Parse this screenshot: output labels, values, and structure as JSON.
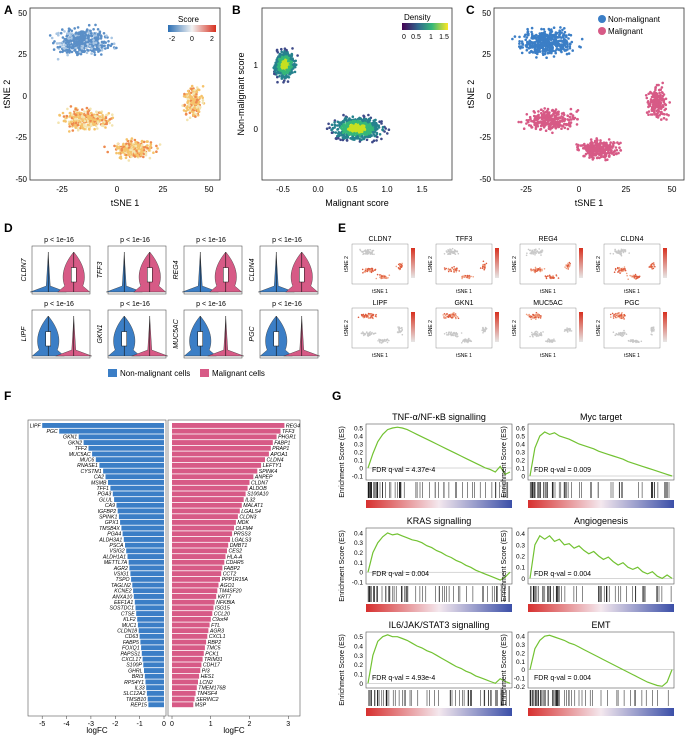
{
  "panels": {
    "A": {
      "label": "A",
      "xlabel": "tSNE 1",
      "ylabel": "tSNE 2",
      "xticks": [
        "-25",
        "0",
        "25",
        "50"
      ],
      "yticks": [
        "50",
        "25",
        "0",
        "-25",
        "-50"
      ],
      "legend_title": "Score",
      "legend_ticks": [
        "-2",
        "0",
        "2"
      ]
    },
    "B": {
      "label": "B",
      "xlabel": "Malignant score",
      "ylabel": "Non-malignant score",
      "xticks": [
        "-0.5",
        "0.0",
        "0.5",
        "1.0",
        "1.5"
      ],
      "yticks": [
        "1",
        "0"
      ],
      "legend_title": "Density",
      "legend_ticks": [
        "0",
        "0.5",
        "1",
        "1.5"
      ]
    },
    "C": {
      "label": "C",
      "xlabel": "tSNE 1",
      "ylabel": "tSNE 2",
      "xticks": [
        "-25",
        "0",
        "25",
        "50"
      ],
      "yticks": [
        "50",
        "25",
        "0",
        "-25",
        "-50"
      ],
      "legend": [
        "Non-malignant",
        "Malignant"
      ]
    },
    "D": {
      "label": "D",
      "pval": "p < 1e-16",
      "genes": [
        "CLDN7",
        "TFF3",
        "REG4",
        "CLDN4",
        "LIPF",
        "GKN1",
        "MUC5AC",
        "PGC"
      ],
      "legend": [
        "Non-malignant cells",
        "Malignant cells"
      ]
    },
    "E": {
      "label": "E",
      "genes": [
        "CLDN7",
        "TFF3",
        "REG4",
        "CLDN4",
        "LIPF",
        "GKN1",
        "MUC5AC",
        "PGC"
      ],
      "xlabel": "tSNE 1",
      "ylabel": "tSNE 2"
    },
    "F": {
      "label": "F",
      "xlabel": "logFC",
      "left_ticks": [
        "-5",
        "-4",
        "-3",
        "-2",
        "-1",
        "0"
      ],
      "right_ticks": [
        "0",
        "1",
        "2",
        "3"
      ]
    },
    "G": {
      "label": "G",
      "ylabel": "Enrichment Score (ES)"
    }
  },
  "chart_data": [
    {
      "type": "bar",
      "panel": "F-left",
      "xlabel": "logFC",
      "categories": [
        "LIPF",
        "PGC",
        "GKN1",
        "GKN2",
        "TFF2",
        "MUC5AC",
        "MUC6",
        "RNASE1",
        "CYSTM1",
        "CA2",
        "MSMB",
        "TFF1",
        "PGA3",
        "GLUL",
        "CA9",
        "IGFBP2",
        "SPINK1",
        "GPX1",
        "TMSB4X",
        "PGA4",
        "ALDH3A1",
        "PSCA",
        "VSIG2",
        "ALDH1A1",
        "METTL7A",
        "AGR2",
        "VSIG1",
        "TSPO",
        "TAGLN2",
        "KCNE2",
        "ANXA10",
        "EEF1A1",
        "SOSTDC1",
        "CTSE",
        "KLF2",
        "MUC1",
        "CLDN18",
        "CD63",
        "FABP5",
        "FOXQ1",
        "PAPSS1",
        "CXCL17",
        "S100P",
        "GHRL",
        "BRI3",
        "RPS4Y1",
        "IL33",
        "SLC12A2",
        "TMSB10",
        "REP15"
      ],
      "values": [
        -5.0,
        -4.3,
        -3.5,
        -3.3,
        -3.1,
        -2.95,
        -2.8,
        -2.65,
        -2.5,
        -2.4,
        -2.3,
        -2.2,
        -2.1,
        -2.05,
        -1.95,
        -1.9,
        -1.85,
        -1.8,
        -1.75,
        -1.7,
        -1.65,
        -1.6,
        -1.55,
        -1.5,
        -1.45,
        -1.42,
        -1.38,
        -1.35,
        -1.3,
        -1.27,
        -1.24,
        -1.2,
        -1.17,
        -1.14,
        -1.1,
        -1.07,
        -1.04,
        -1.0,
        -0.97,
        -0.94,
        -0.91,
        -0.88,
        -0.85,
        -0.82,
        -0.79,
        -0.76,
        -0.73,
        -0.7,
        -0.67,
        -0.64
      ],
      "xlim": [
        -5.5,
        0
      ]
    },
    {
      "type": "bar",
      "panel": "F-right",
      "xlabel": "logFC",
      "categories": [
        "REG4",
        "TFF3",
        "PHGR1",
        "FABP1",
        "PRAP1",
        "APOA1",
        "CLDN4",
        "LEFTY1",
        "SPINK4",
        "ANPEP",
        "CLDN7",
        "ALDOB",
        "S100A10",
        "IL32",
        "MALAT1",
        "LGALS4",
        "CLDN3",
        "MDK",
        "OLFM4",
        "PRSS3",
        "LGALS3",
        "DMBT1",
        "CES2",
        "HLA-A",
        "CDHR5",
        "FABP2",
        "CCT2",
        "PPP1R15A",
        "AGO1",
        "TM4SF20",
        "KRT7",
        "NFKBIA",
        "ISG15",
        "CCL20",
        "C9orf4",
        "FTL",
        "AGR3",
        "CXCL1",
        "RBP2",
        "TMC5",
        "PCK1",
        "TRIM31",
        "CDH17",
        "PI3",
        "HES1",
        "LCN2",
        "TMEM176B",
        "TM4SF4",
        "SERINC2",
        "MSP"
      ],
      "values": [
        2.9,
        2.8,
        2.7,
        2.6,
        2.55,
        2.5,
        2.4,
        2.3,
        2.2,
        2.1,
        2.0,
        1.95,
        1.9,
        1.85,
        1.8,
        1.75,
        1.7,
        1.65,
        1.6,
        1.55,
        1.5,
        1.45,
        1.42,
        1.38,
        1.35,
        1.3,
        1.27,
        1.24,
        1.2,
        1.17,
        1.14,
        1.1,
        1.07,
        1.04,
        1.0,
        0.97,
        0.94,
        0.91,
        0.88,
        0.85,
        0.82,
        0.79,
        0.76,
        0.73,
        0.7,
        0.67,
        0.64,
        0.61,
        0.58,
        0.55
      ],
      "xlim": [
        0,
        3.2
      ]
    },
    {
      "type": "line",
      "panel": "G",
      "title": "TNF-α/NF-κB signalling",
      "fdr": "FDR q-val = 4.37e-4",
      "ylabel": "Enrichment Score (ES)",
      "yticks": [
        "0.5",
        "0.4",
        "0.3",
        "0.2",
        "0.1",
        "0",
        "-0.1"
      ],
      "ylim": [
        -0.15,
        0.55
      ],
      "values": [
        0,
        0.18,
        0.33,
        0.42,
        0.48,
        0.5,
        0.51,
        0.5,
        0.48,
        0.45,
        0.42,
        0.39,
        0.36,
        0.33,
        0.3,
        0.27,
        0.24,
        0.21,
        0.18,
        0.15,
        0.12,
        0.09,
        0.06,
        0.03,
        0.0,
        -0.02,
        -0.05,
        0.02,
        -0.08,
        -0.05
      ]
    },
    {
      "type": "line",
      "panel": "G",
      "title": "Myc target",
      "fdr": "FDR q-val = 0.009",
      "ylabel": "Enrichment Score (ES)",
      "yticks": [
        "0.6",
        "0.5",
        "0.4",
        "0.3",
        "0.2",
        "0.1",
        "0"
      ],
      "ylim": [
        -0.05,
        0.65
      ],
      "values": [
        0,
        0.35,
        0.5,
        0.55,
        0.52,
        0.54,
        0.5,
        0.48,
        0.46,
        0.43,
        0.4,
        0.38,
        0.36,
        0.34,
        0.31,
        0.29,
        0.27,
        0.25,
        0.23,
        0.21,
        0.18,
        0.16,
        0.14,
        0.12,
        0.1,
        0.08,
        0.06,
        0.04,
        0.02,
        0.0
      ]
    },
    {
      "type": "line",
      "panel": "G",
      "title": "KRAS signalling",
      "fdr": "FDR q-val = 0.004",
      "ylabel": "Enrichment Score (ES)",
      "yticks": [
        "0.4",
        "0.3",
        "0.2",
        "0.1",
        "0",
        "-0.1"
      ],
      "ylim": [
        -0.12,
        0.45
      ],
      "values": [
        0,
        0.2,
        0.3,
        0.36,
        0.4,
        0.38,
        0.39,
        0.37,
        0.35,
        0.33,
        0.32,
        0.3,
        0.27,
        0.25,
        0.22,
        0.2,
        0.17,
        0.15,
        0.12,
        0.1,
        0.07,
        0.05,
        0.02,
        0.0,
        -0.02,
        -0.04,
        -0.06,
        -0.08,
        -0.05,
        0.0
      ]
    },
    {
      "type": "line",
      "panel": "G",
      "title": "Angiogenesis",
      "fdr": "FDR q-val = 0.004",
      "ylabel": "Enrichment Score (ES)",
      "yticks": [
        "0.4",
        "0.3",
        "0.2",
        "0.1",
        "0"
      ],
      "ylim": [
        -0.05,
        0.45
      ],
      "values": [
        0,
        0.3,
        0.38,
        0.35,
        0.38,
        0.33,
        0.35,
        0.3,
        0.31,
        0.27,
        0.29,
        0.25,
        0.22,
        0.24,
        0.2,
        0.17,
        0.19,
        0.15,
        0.12,
        0.14,
        0.1,
        0.08,
        0.1,
        0.06,
        0.04,
        0.06,
        0.02,
        0.0,
        0.03,
        0.0
      ]
    },
    {
      "type": "line",
      "panel": "G",
      "title": "IL6/JAK/STAT3 signalling",
      "fdr": "FDR q-val = 4.93e-4",
      "ylabel": "Enrichment Score (ES)",
      "yticks": [
        "0.5",
        "0.4",
        "0.3",
        "0.2",
        "0.1",
        "0"
      ],
      "ylim": [
        -0.05,
        0.55
      ],
      "values": [
        0,
        0.3,
        0.45,
        0.5,
        0.52,
        0.5,
        0.5,
        0.48,
        0.46,
        0.43,
        0.4,
        0.38,
        0.35,
        0.33,
        0.3,
        0.27,
        0.24,
        0.21,
        0.18,
        0.16,
        0.13,
        0.11,
        0.08,
        0.06,
        0.04,
        0.02,
        0.0,
        0.05,
        0.02,
        0.0
      ]
    },
    {
      "type": "line",
      "panel": "G",
      "title": "EMT",
      "fdr": "FDR q-val = 0.004",
      "ylabel": "Enrichment Score (ES)",
      "yticks": [
        "0.4",
        "0.3",
        "0.2",
        "0.1",
        "0",
        "-0.1",
        "-0.2"
      ],
      "ylim": [
        -0.22,
        0.45
      ],
      "values": [
        0,
        0.25,
        0.35,
        0.4,
        0.41,
        0.39,
        0.37,
        0.35,
        0.32,
        0.3,
        0.27,
        0.24,
        0.21,
        0.18,
        0.15,
        0.12,
        0.09,
        0.06,
        0.03,
        0.0,
        -0.03,
        -0.06,
        -0.09,
        -0.12,
        -0.15,
        -0.17,
        -0.19,
        -0.2,
        -0.15,
        0.0
      ]
    }
  ],
  "colors": {
    "nonmalignant": "#3b7ec6",
    "malignant": "#d75a86",
    "gsea_line": "#72c232"
  }
}
